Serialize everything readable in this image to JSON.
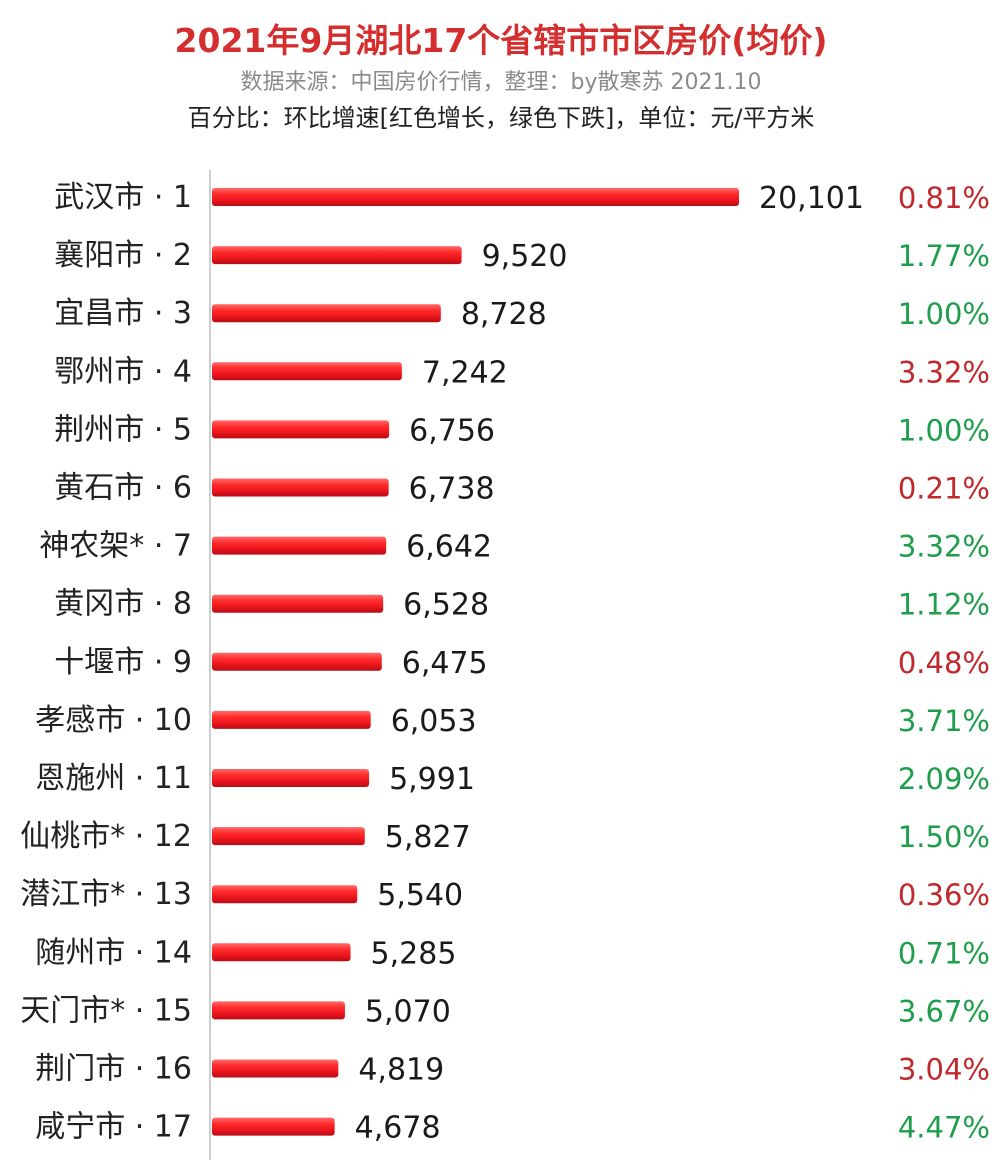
{
  "header": {
    "title": "2021年9月湖北17个省辖市市区房价(均价)",
    "source": "数据来源：中国房价行情，整理：by散寒苏 2021.10",
    "note": "百分比：环比增速[红色增长，绿色下跌]，单位：元/平方米"
  },
  "colors": {
    "bar": "#e8141c",
    "up": "#c0282c",
    "down": "#1e9e4a"
  },
  "chart_data": {
    "type": "bar",
    "orientation": "horizontal",
    "categories": [
      "武汉市 · 1",
      "襄阳市 · 2",
      "宜昌市 · 3",
      "鄂州市 · 4",
      "荆州市 · 5",
      "黄石市 · 6",
      "神农架* · 7",
      "黄冈市 · 8",
      "十堰市 · 9",
      "孝感市 · 10",
      "恩施州 · 11",
      "仙桃市* · 12",
      "潜江市* · 13",
      "随州市 · 14",
      "天门市* · 15",
      "荆门市 · 16",
      "咸宁市 · 17"
    ],
    "values": [
      20101,
      9520,
      8728,
      7242,
      6756,
      6738,
      6642,
      6528,
      6475,
      6053,
      5991,
      5827,
      5540,
      5285,
      5070,
      4819,
      4678
    ],
    "value_labels": [
      "20,101",
      "9,520",
      "8,728",
      "7,242",
      "6,756",
      "6,738",
      "6,642",
      "6,528",
      "6,475",
      "6,053",
      "5,991",
      "5,827",
      "5,540",
      "5,285",
      "5,070",
      "4,819",
      "4,678"
    ],
    "change_labels": [
      "0.81%",
      "1.77%",
      "1.00%",
      "3.32%",
      "1.00%",
      "0.21%",
      "3.32%",
      "1.12%",
      "0.48%",
      "3.71%",
      "2.09%",
      "1.50%",
      "0.36%",
      "0.71%",
      "3.67%",
      "3.04%",
      "4.47%"
    ],
    "change_direction": [
      "up",
      "down",
      "down",
      "up",
      "down",
      "up",
      "down",
      "down",
      "up",
      "down",
      "down",
      "down",
      "up",
      "down",
      "down",
      "up",
      "down"
    ],
    "xlim": [
      0,
      20101
    ],
    "grid": false,
    "legend": "none"
  }
}
